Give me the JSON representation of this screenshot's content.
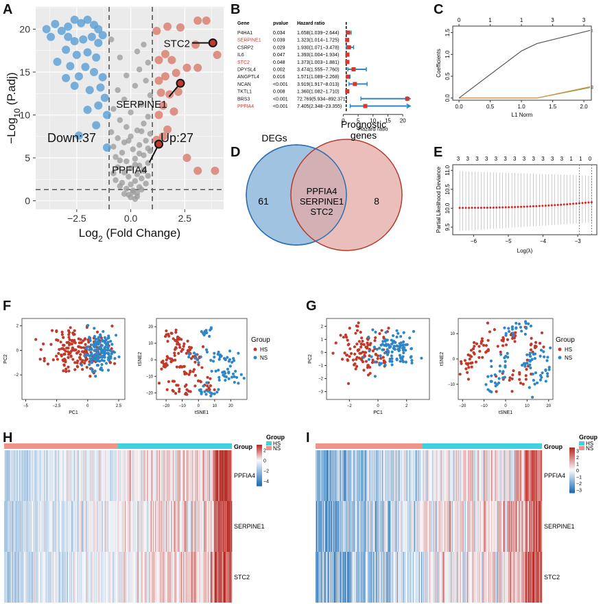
{
  "panel_labels": [
    "A",
    "B",
    "C",
    "D",
    "E",
    "F",
    "G",
    "H",
    "I"
  ],
  "colors": {
    "blue": "#2e86c6",
    "red": "#c0392b",
    "down": "#5a9fd4",
    "up": "#d97b6c",
    "gray": "#9a9a9a",
    "venn_blue": "#8fb9dc",
    "venn_red": "#e3aaa4",
    "hm_hs": "#f0948a",
    "hm_ns": "#3fd2dc"
  },
  "chart_data": [
    {
      "id": "A",
      "type": "scatter",
      "subtype": "volcano",
      "xlabel": "Log2 (Fold Change)",
      "ylabel": "−Log10 (P.adj)",
      "xticks": [
        -2.5,
        0.0,
        2.5
      ],
      "yticks": [
        0,
        5,
        10,
        15,
        20
      ],
      "xlim": [
        -4.4,
        4.3
      ],
      "ylim": [
        -1,
        22.6
      ],
      "thresholds": {
        "fc": [
          -1,
          1
        ],
        "p": 1.3
      },
      "down_label": "Down:37",
      "up_label": "Up:27",
      "highlights": [
        {
          "gene": "STC2",
          "x": 3.8,
          "y": 18.4
        },
        {
          "gene": "SERPINE1",
          "x": 2.3,
          "y": 13.7
        },
        {
          "gene": "PPFIA4",
          "x": 1.3,
          "y": 6.6
        }
      ],
      "down_points": [
        [
          -3.9,
          20.0
        ],
        [
          -3.5,
          20.6
        ],
        [
          -3.2,
          19.8
        ],
        [
          -3.7,
          19.1
        ],
        [
          -2.9,
          20.3
        ],
        [
          -2.6,
          21.1
        ],
        [
          -2.3,
          20.7
        ],
        [
          -2.0,
          21.1
        ],
        [
          -1.7,
          20.5
        ],
        [
          -1.5,
          20.0
        ],
        [
          -1.3,
          19.3
        ],
        [
          -2.9,
          19.1
        ],
        [
          -2.6,
          18.6
        ],
        [
          -2.2,
          18.8
        ],
        [
          -1.8,
          19.1
        ],
        [
          -1.5,
          18.4
        ],
        [
          -3.0,
          17.6
        ],
        [
          -2.5,
          17.0
        ],
        [
          -2.0,
          17.3
        ],
        [
          -1.6,
          16.7
        ],
        [
          -3.4,
          16.2
        ],
        [
          -2.8,
          15.7
        ],
        [
          -2.1,
          15.6
        ],
        [
          -1.7,
          15.0
        ],
        [
          -1.3,
          14.4
        ],
        [
          -3.0,
          14.3
        ],
        [
          -2.4,
          14.5
        ],
        [
          -2.6,
          13.4
        ],
        [
          -1.9,
          12.9
        ],
        [
          -1.4,
          13.2
        ],
        [
          -1.2,
          12.0
        ],
        [
          -1.5,
          11.1
        ],
        [
          -2.0,
          10.6
        ],
        [
          -1.1,
          10.0
        ],
        [
          -1.6,
          8.8
        ],
        [
          -1.1,
          6.2
        ],
        [
          -2.4,
          7.6
        ]
      ],
      "up_points": [
        [
          3.1,
          21.0
        ],
        [
          3.5,
          21.0
        ],
        [
          2.3,
          20.2
        ],
        [
          1.7,
          20.3
        ],
        [
          1.2,
          19.8
        ],
        [
          3.0,
          18.2
        ],
        [
          4.0,
          17.0
        ],
        [
          1.6,
          17.1
        ],
        [
          1.9,
          16.4
        ],
        [
          1.3,
          16.4
        ],
        [
          2.6,
          15.5
        ],
        [
          3.1,
          15.5
        ],
        [
          2.1,
          14.9
        ],
        [
          1.6,
          14.5
        ],
        [
          1.3,
          14.0
        ],
        [
          2.2,
          12.7
        ],
        [
          1.8,
          12.4
        ],
        [
          1.4,
          12.6
        ],
        [
          1.5,
          11.1
        ],
        [
          2.0,
          10.4
        ],
        [
          1.3,
          10.0
        ],
        [
          1.7,
          8.3
        ],
        [
          1.5,
          7.5
        ],
        [
          1.2,
          7.1
        ],
        [
          3.1,
          3.5
        ],
        [
          3.9,
          3.5
        ],
        [
          2.6,
          5.0
        ]
      ],
      "ns_points": [
        [
          0.2,
          0.2
        ],
        [
          0.0,
          0.4
        ],
        [
          -0.1,
          0.7
        ],
        [
          0.3,
          0.9
        ],
        [
          0.1,
          1.2
        ],
        [
          -0.2,
          1.4
        ],
        [
          0.4,
          1.6
        ],
        [
          0.0,
          1.9
        ],
        [
          -0.4,
          2.1
        ],
        [
          0.2,
          2.3
        ],
        [
          0.5,
          2.6
        ],
        [
          -0.1,
          2.8
        ],
        [
          0.3,
          3.1
        ],
        [
          -0.3,
          3.3
        ],
        [
          0.6,
          3.5
        ],
        [
          0.0,
          3.8
        ],
        [
          -0.6,
          3.9
        ],
        [
          0.4,
          4.1
        ],
        [
          0.8,
          4.4
        ],
        [
          -0.2,
          4.6
        ],
        [
          0.2,
          4.9
        ],
        [
          -0.7,
          5.1
        ],
        [
          0.6,
          5.3
        ],
        [
          -0.4,
          5.6
        ],
        [
          0.9,
          5.8
        ],
        [
          0.1,
          6.0
        ],
        [
          -0.8,
          6.3
        ],
        [
          0.4,
          6.5
        ],
        [
          -0.3,
          6.8
        ],
        [
          0.7,
          7.0
        ],
        [
          -0.6,
          7.3
        ],
        [
          0.0,
          7.5
        ],
        [
          0.9,
          7.8
        ],
        [
          -0.9,
          8.0
        ],
        [
          0.3,
          8.2
        ],
        [
          -0.2,
          8.6
        ],
        [
          0.6,
          9.0
        ],
        [
          -0.5,
          9.4
        ],
        [
          0.8,
          9.8
        ],
        [
          0.0,
          10.3
        ],
        [
          -0.8,
          10.7
        ],
        [
          0.5,
          11.2
        ],
        [
          -0.3,
          11.8
        ],
        [
          0.9,
          12.3
        ],
        [
          -0.6,
          12.9
        ],
        [
          0.2,
          13.4
        ],
        [
          0.7,
          14.0
        ],
        [
          -0.2,
          14.6
        ],
        [
          0.4,
          15.3
        ],
        [
          0.8,
          16.1
        ],
        [
          -0.5,
          16.7
        ],
        [
          0.3,
          17.4
        ],
        [
          0.6,
          18.2
        ],
        [
          -0.9,
          18.8
        ],
        [
          0.1,
          1.0
        ],
        [
          0.3,
          0.5
        ],
        [
          -0.3,
          0.8
        ],
        [
          0.5,
          1.3
        ],
        [
          -0.5,
          1.7
        ],
        [
          0.7,
          2.0
        ],
        [
          -0.7,
          2.4
        ],
        [
          0.8,
          2.9
        ],
        [
          -0.8,
          3.2
        ],
        [
          0.6,
          3.6
        ],
        [
          0.2,
          4.2
        ],
        [
          -0.5,
          4.7
        ],
        [
          0.4,
          5.5
        ],
        [
          0.8,
          6.1
        ],
        [
          -0.1,
          7.0
        ],
        [
          0.5,
          8.1
        ]
      ]
    },
    {
      "id": "B",
      "type": "table",
      "subtype": "forest",
      "headers": [
        "Gene",
        "pvalue",
        "Hazard ratio"
      ],
      "xlabel": "Hazard ratio",
      "xticks": [
        0,
        5,
        10,
        15,
        20
      ],
      "xlim": [
        -1,
        22.5
      ],
      "rows": [
        {
          "gene": "P4HA1",
          "p": "0.034",
          "hr_text": "1.658(1.039−2.644)",
          "hr": 1.658,
          "lo": 1.039,
          "hi": 2.644,
          "red": false,
          "arrow": false
        },
        {
          "gene": "SERPINE1",
          "p": "0.039",
          "hr_text": "1.323(1.014−1.725)",
          "hr": 1.323,
          "lo": 1.014,
          "hi": 1.725,
          "red": true,
          "arrow": false
        },
        {
          "gene": "CSRP2",
          "p": "0.029",
          "hr_text": "1.930(1.071−3.478)",
          "hr": 1.93,
          "lo": 1.071,
          "hi": 3.478,
          "red": false,
          "arrow": false
        },
        {
          "gene": "IL6",
          "p": "0.047",
          "hr_text": "1.393(1.004−1.934)",
          "hr": 1.393,
          "lo": 1.004,
          "hi": 1.934,
          "red": false,
          "arrow": false
        },
        {
          "gene": "STC2",
          "p": "0.048",
          "hr_text": "1.373(1.003−1.881)",
          "hr": 1.373,
          "lo": 1.003,
          "hi": 1.881,
          "red": true,
          "arrow": false
        },
        {
          "gene": "DPYSL4",
          "p": "0.002",
          "hr_text": "3.474(1.555−7.760)",
          "hr": 3.474,
          "lo": 1.555,
          "hi": 7.76,
          "red": false,
          "arrow": false
        },
        {
          "gene": "ANGPTL4",
          "p": "0.016",
          "hr_text": "1.571(1.089−2.268)",
          "hr": 1.571,
          "lo": 1.089,
          "hi": 2.268,
          "red": false,
          "arrow": false
        },
        {
          "gene": "NCAN",
          "p": "<0.001",
          "hr_text": "3.919(1.917−8.013)",
          "hr": 3.919,
          "lo": 1.917,
          "hi": 8.013,
          "red": false,
          "arrow": false
        },
        {
          "gene": "TKTL1",
          "p": "0.008",
          "hr_text": "1.360(1.082−1.710)",
          "hr": 1.36,
          "lo": 1.082,
          "hi": 1.71,
          "red": false,
          "arrow": false
        },
        {
          "gene": "BRS3",
          "p": "<0.001",
          "hr_text": "72.769(5.934−892.371)",
          "hr": 72.769,
          "lo": 5.934,
          "hi": 892.371,
          "red": false,
          "arrow": true
        },
        {
          "gene": "PPFIA4",
          "p": "<0.001",
          "hr_text": "7.405(2.348−23.355)",
          "hr": 7.405,
          "lo": 2.348,
          "hi": 23.355,
          "red": true,
          "arrow": true
        }
      ]
    },
    {
      "id": "C",
      "type": "venn",
      "sets": [
        {
          "label": "DEGs",
          "only": "61"
        },
        {
          "label": "Prognostic genes",
          "only": "8"
        }
      ],
      "intersection": [
        "PPFIA4",
        "SERPINE1",
        "STC2"
      ]
    },
    {
      "id": "D",
      "type": "line",
      "subtype": "lasso-coefficients",
      "xlabel": "L1 Norm",
      "ylabel": "Coefficients",
      "xticks": [
        0.0,
        0.5,
        1.0,
        1.5,
        2.0
      ],
      "yticks": [
        0.0,
        0.5,
        1.0,
        1.5
      ],
      "top_ticks": [
        "0",
        "1",
        "1",
        "3",
        "3"
      ],
      "top_tick_x": [
        0.0,
        0.5,
        1.0,
        1.5,
        2.0
      ],
      "xlim": [
        -0.1,
        2.12
      ],
      "ylim": [
        -0.05,
        1.65
      ],
      "series": [
        {
          "name": "1",
          "x": [
            0,
            1.0,
            1.25,
            2.1
          ],
          "y": [
            0,
            1.08,
            1.25,
            1.55
          ],
          "color": "#555555"
        },
        {
          "name": "2",
          "x": [
            0,
            1.25,
            2.1
          ],
          "y": [
            0,
            0,
            0.26
          ],
          "color": "#e08a4a"
        },
        {
          "name": "3",
          "x": [
            0,
            1.25,
            2.1
          ],
          "y": [
            0,
            0,
            0.24
          ],
          "color": "#6aaa3a"
        }
      ]
    },
    {
      "id": "E",
      "type": "line",
      "subtype": "cv-deviance",
      "xlabel": "Log(λ)",
      "ylabel": "Partial Likelihood Deviance",
      "xticks": [
        -6,
        -5,
        -4,
        -3
      ],
      "yticks": [
        9.5,
        10.0,
        10.5,
        11.0
      ],
      "xlim": [
        -6.6,
        -2.45
      ],
      "ylim": [
        9.3,
        11.15
      ],
      "top_ticks": [
        "3",
        "3",
        "3",
        "3",
        "3",
        "3",
        "3",
        "3",
        "3",
        "3",
        "3",
        "3",
        "1",
        "1",
        "0"
      ],
      "x_start": -6.4,
      "x_end": -2.6,
      "n_points": 44,
      "y_start": 10.01,
      "y_end": 10.16,
      "err_lo_start": 9.4,
      "err_lo_end": 9.62,
      "err_hi_start": 10.98,
      "err_hi_end": 10.86
    },
    {
      "id": "F1",
      "type": "scatter",
      "subtype": "PCA",
      "xlabel": "PC1",
      "ylabel": "PC2",
      "xticks": [
        -5.0,
        -2.5,
        0.0,
        2.5
      ],
      "yticks": [
        -2,
        0,
        2
      ],
      "xlim": [
        -5.3,
        3.0
      ],
      "ylim": [
        -4.0,
        2.6
      ],
      "n_hs": 180,
      "n_ns": 150,
      "seed": 11,
      "hs_center": [
        -0.8,
        0.0
      ],
      "hs_spread": [
        1.2,
        1.0
      ],
      "ns_center": [
        1.0,
        0.0
      ],
      "ns_spread": [
        0.55,
        0.7
      ]
    },
    {
      "id": "F2",
      "type": "scatter",
      "subtype": "tSNE",
      "xlabel": "tSNE1",
      "ylabel": "tSNE2",
      "xticks": [
        -20,
        -10,
        0,
        10,
        20
      ],
      "yticks": [
        -20,
        -10,
        0,
        10,
        20
      ],
      "xlim": [
        -26,
        30
      ],
      "ylim": [
        -24,
        25
      ],
      "seed": 21,
      "legend_title": "Group",
      "legend": [
        "HS",
        "NS"
      ]
    },
    {
      "id": "G1",
      "type": "scatter",
      "subtype": "PCA",
      "xlabel": "PC1",
      "ylabel": "PC2",
      "xticks": [
        -2,
        0,
        2
      ],
      "yticks": [
        -3,
        -2,
        -1,
        0,
        1,
        2
      ],
      "xlim": [
        -3.6,
        3.6
      ],
      "ylim": [
        -3.6,
        2.6
      ],
      "n_hs": 110,
      "n_ns": 100,
      "seed": 31,
      "hs_center": [
        -1.0,
        0.1
      ],
      "hs_spread": [
        1.0,
        1.0
      ],
      "ns_center": [
        1.0,
        0.2
      ],
      "ns_spread": [
        0.9,
        0.7
      ]
    },
    {
      "id": "G2",
      "type": "scatter",
      "subtype": "tSNE",
      "xlabel": "tSNE1",
      "ylabel": "tSNE2",
      "xticks": [
        -20,
        -10,
        0,
        10,
        20
      ],
      "yticks": [
        -10,
        0,
        10
      ],
      "xlim": [
        -22,
        22
      ],
      "ylim": [
        -16,
        16
      ],
      "seed": 41,
      "legend_title": "Group",
      "legend": [
        "HS",
        "NS"
      ]
    },
    {
      "id": "H",
      "type": "heatmap",
      "rows": [
        "PPFIA4",
        "SERPINE1",
        "STC2"
      ],
      "n_cols": 300,
      "hs_frac": 0.5,
      "seed": 51,
      "group_label": "Group",
      "legend_title": "Group",
      "legend": [
        "HS",
        "NS"
      ],
      "scale_ticks": [
        2,
        0,
        -2,
        -4
      ],
      "scale_range": [
        -5,
        3
      ]
    },
    {
      "id": "I",
      "type": "heatmap",
      "rows": [
        "PPFIA4",
        "SERPINE1",
        "STC2"
      ],
      "n_cols": 300,
      "hs_frac": 0.47,
      "seed": 61,
      "group_label": "Group",
      "legend_title": "Group",
      "legend": [
        "HS",
        "NS"
      ],
      "scale_ticks": [
        3,
        2,
        1,
        0,
        -1,
        -2,
        -3
      ],
      "scale_range": [
        -3.5,
        3.5
      ]
    }
  ]
}
